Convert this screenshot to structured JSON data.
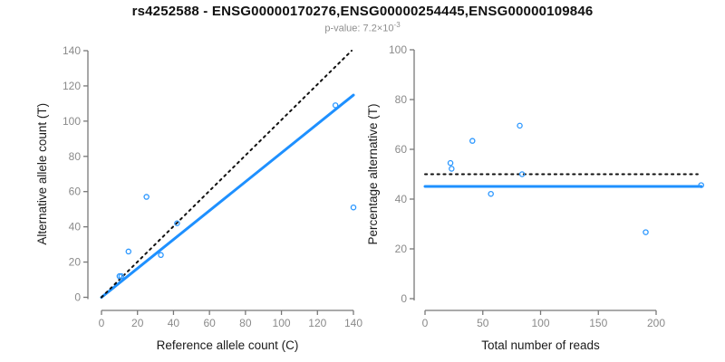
{
  "header": {
    "title": "rs4252588 - ENSG00000170276,ENSG00000254445,ENSG00000109846",
    "subtitle_prefix": "p-value: ",
    "pvalue_mantissa": "7.2",
    "times_symbol": "×",
    "pvalue_base": "10",
    "pvalue_exponent": "-3"
  },
  "colors": {
    "accent_blue": "#1e90ff",
    "point_blue": "#2b97ff",
    "dotted_black": "#111111",
    "axis": "#787878",
    "tick_text": "#8a8a8a",
    "label_text": "#1a1a1a"
  },
  "chart_data": [
    {
      "type": "scatter",
      "panel": "left",
      "xlabel": "Reference allele count (C)",
      "ylabel": "Alternative allele count (T)",
      "xlim": [
        0,
        140
      ],
      "ylim": [
        0,
        140
      ],
      "xticks": [
        0,
        20,
        40,
        60,
        80,
        100,
        120,
        140
      ],
      "yticks": [
        0,
        20,
        40,
        60,
        80,
        100,
        120,
        140
      ],
      "grid": false,
      "legend": null,
      "points": [
        [
          10,
          12
        ],
        [
          11,
          12
        ],
        [
          15,
          26
        ],
        [
          25,
          57
        ],
        [
          33,
          24
        ],
        [
          42,
          42
        ],
        [
          130,
          109
        ],
        [
          140,
          51
        ]
      ],
      "lines": [
        {
          "name": "fit-ratio-line",
          "style": "solid",
          "color_key": "accent_blue",
          "from": [
            0,
            0
          ],
          "to": [
            140,
            114.8
          ]
        },
        {
          "name": "identity-line",
          "style": "dotted",
          "color_key": "dotted_black",
          "from": [
            0,
            0
          ],
          "to": [
            139,
            140
          ]
        }
      ]
    },
    {
      "type": "scatter",
      "panel": "right",
      "xlabel": "Total number of reads",
      "ylabel": "Percentage alternative (T)",
      "xlim": [
        0,
        200
      ],
      "ylim": [
        0,
        100
      ],
      "xticks": [
        0,
        50,
        100,
        150,
        200
      ],
      "yticks": [
        0,
        20,
        40,
        60,
        80,
        100
      ],
      "grid": false,
      "legend": null,
      "points": [
        [
          22,
          54.5
        ],
        [
          23,
          52.2
        ],
        [
          41,
          63.4
        ],
        [
          57,
          42.1
        ],
        [
          82,
          69.5
        ],
        [
          84,
          50.0
        ],
        [
          191,
          26.7
        ],
        [
          239,
          45.6
        ]
      ],
      "lines": [
        {
          "name": "mean-percentage-line",
          "style": "solid",
          "color_key": "accent_blue",
          "from": [
            0,
            45.1
          ],
          "to": [
            239,
            45.1
          ]
        },
        {
          "name": "expected-50pct-line",
          "style": "dotted",
          "color_key": "dotted_black",
          "from": [
            0,
            50
          ],
          "to": [
            236,
            50
          ]
        }
      ]
    }
  ]
}
